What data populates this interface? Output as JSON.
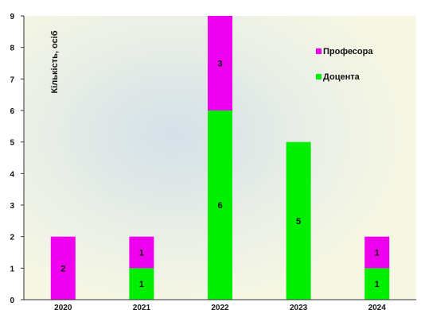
{
  "chart_data": {
    "type": "bar",
    "stacked": true,
    "ylabel": "Кількість, осіб",
    "xlabel": "",
    "ylim": [
      0,
      9
    ],
    "yticks": [
      0,
      1,
      2,
      3,
      4,
      5,
      6,
      7,
      8,
      9
    ],
    "categories": [
      "2020",
      "2021",
      "2022",
      "2023",
      "2024"
    ],
    "series": [
      {
        "name": "Доцента",
        "color": "#00ee00",
        "values": [
          0,
          1,
          6,
          5,
          1
        ]
      },
      {
        "name": "Професора",
        "color": "#ee00ee",
        "values": [
          2,
          1,
          3,
          0,
          1
        ]
      }
    ],
    "legend": {
      "position": "top-right",
      "order": [
        "Професора",
        "Доцента"
      ]
    },
    "grid": false,
    "background_color": "#f7f7e4"
  }
}
